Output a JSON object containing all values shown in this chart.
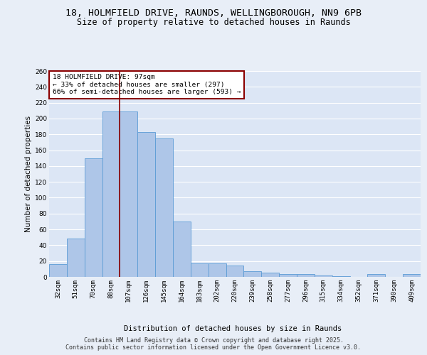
{
  "title_line1": "18, HOLMFIELD DRIVE, RAUNDS, WELLINGBOROUGH, NN9 6PB",
  "title_line2": "Size of property relative to detached houses in Raunds",
  "xlabel": "Distribution of detached houses by size in Raunds",
  "ylabel": "Number of detached properties",
  "categories": [
    "32sqm",
    "51sqm",
    "70sqm",
    "88sqm",
    "107sqm",
    "126sqm",
    "145sqm",
    "164sqm",
    "183sqm",
    "202sqm",
    "220sqm",
    "239sqm",
    "258sqm",
    "277sqm",
    "296sqm",
    "315sqm",
    "334sqm",
    "352sqm",
    "371sqm",
    "390sqm",
    "409sqm"
  ],
  "heights": [
    16,
    48,
    150,
    209,
    209,
    183,
    175,
    70,
    17,
    17,
    14,
    7,
    5,
    4,
    4,
    2,
    1,
    0,
    4,
    0,
    4
  ],
  "bar_color": "#aec6e8",
  "bar_edge_color": "#5b9bd5",
  "vline_color": "#8b0000",
  "annotation_title": "18 HOLMFIELD DRIVE: 97sqm",
  "annotation_line1": "← 33% of detached houses are smaller (297)",
  "annotation_line2": "66% of semi-detached houses are larger (593) →",
  "annotation_box_color": "#8b0000",
  "annotation_bg": "#ffffff",
  "ylim": [
    0,
    260
  ],
  "yticks": [
    0,
    20,
    40,
    60,
    80,
    100,
    120,
    140,
    160,
    180,
    200,
    220,
    240,
    260
  ],
  "background_color": "#e8eef7",
  "plot_bg": "#dce6f5",
  "grid_color": "#ffffff",
  "footer_line1": "Contains HM Land Registry data © Crown copyright and database right 2025.",
  "footer_line2": "Contains public sector information licensed under the Open Government Licence v3.0.",
  "title_fontsize": 9.5,
  "subtitle_fontsize": 8.5,
  "axis_label_fontsize": 7.5,
  "tick_fontsize": 6.5,
  "annotation_fontsize": 6.8,
  "footer_fontsize": 6
}
